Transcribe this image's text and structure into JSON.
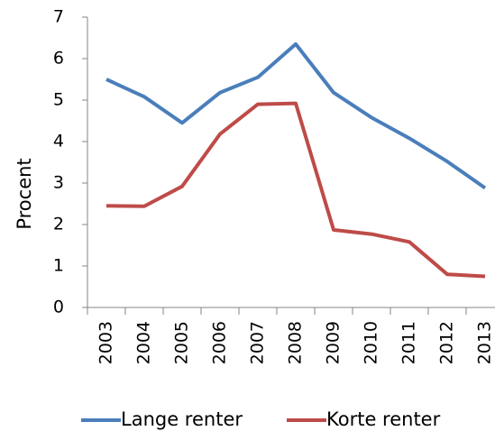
{
  "chart_data": {
    "type": "line",
    "y_label": "Procent",
    "categories": [
      "2003",
      "2004",
      "2005",
      "2006",
      "2007",
      "2008",
      "2009",
      "2010",
      "2011",
      "2012",
      "2013"
    ],
    "series": [
      {
        "name": "Lange renter",
        "color": "#4a7ebb",
        "values": [
          5.5,
          5.08,
          4.45,
          5.18,
          5.55,
          6.35,
          5.18,
          4.58,
          4.08,
          3.52,
          2.88
        ]
      },
      {
        "name": "Korte renter",
        "color": "#be4b48",
        "values": [
          2.45,
          2.44,
          2.92,
          4.18,
          4.9,
          4.92,
          1.87,
          1.77,
          1.58,
          0.8,
          0.75
        ]
      }
    ],
    "ylim": [
      0,
      7
    ],
    "yticks": [
      0,
      1,
      2,
      3,
      4,
      5,
      6,
      7
    ],
    "grid": false
  }
}
